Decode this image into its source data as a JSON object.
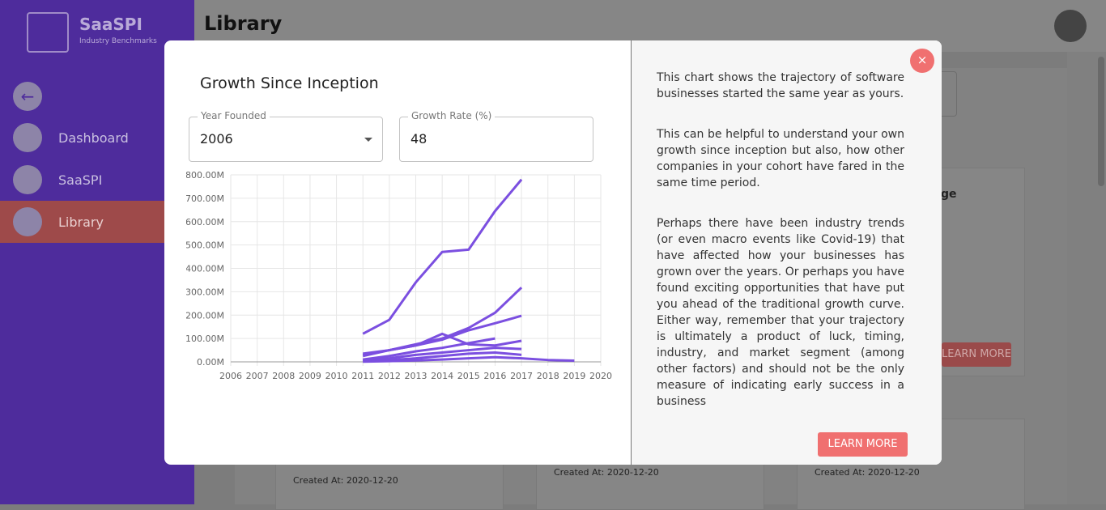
{
  "sidebar": {
    "logo_title": "SaaSPI",
    "logo_subtitle": "Industry Benchmarks",
    "nav": [
      "Dashboard",
      "SaaSPI",
      "Library"
    ]
  },
  "header": {
    "title": "Library"
  },
  "background": {
    "card_title_fragment": "ge",
    "button": "LEARN MORE",
    "created_at": [
      "Created At: 2020-12-20",
      "Created At: 2020-12-20",
      "Created At: 2020-12-20"
    ]
  },
  "modal": {
    "title": "Growth Since Inception",
    "fields": [
      {
        "label": "Year Founded",
        "value": "2006"
      },
      {
        "label": "Growth Rate (%)",
        "value": "48"
      }
    ],
    "description": [
      "This chart shows the trajectory of software businesses started the same year as yours.",
      "This can be helpful to understand your own growth since inception but also, how other companies in your cohort have fared in the same time period.",
      "Perhaps there have been industry trends (or even macro events like Covid-19) that have affected how your businesses has grown over the years. Or perhaps you have found exciting opportunities that have put you ahead of the traditional growth curve. Either way, remember that your trajectory is ultimately a product of luck, timing, industry, and market segment (among other factors) and should not be the only measure of indicating early success in a business"
    ],
    "button": "LEARN MORE",
    "close": "×"
  },
  "chart_data": {
    "type": "line",
    "x": [
      2011,
      2012,
      2013,
      2014,
      2015,
      2016,
      2017,
      2018,
      2019
    ],
    "series": [
      {
        "color": "#7b4fe0",
        "values": [
          120,
          180,
          340,
          470,
          480,
          645,
          780,
          null,
          null
        ]
      },
      {
        "color": "#7b4fe0",
        "values": [
          30,
          50,
          75,
          100,
          145,
          210,
          318,
          null,
          null
        ]
      },
      {
        "color": "#7b4fe0",
        "values": [
          25,
          50,
          70,
          95,
          135,
          165,
          197,
          null,
          null
        ]
      },
      {
        "color": "#7b4fe0",
        "values": [
          35,
          50,
          70,
          120,
          75,
          70,
          90,
          null,
          null
        ]
      },
      {
        "color": "#7b4fe0",
        "values": [
          10,
          25,
          45,
          60,
          80,
          100,
          null,
          null,
          null
        ]
      },
      {
        "color": "#7b4fe0",
        "values": [
          5,
          15,
          30,
          40,
          50,
          60,
          55,
          null,
          null
        ]
      },
      {
        "color": "#7b4fe0",
        "values": [
          2,
          8,
          15,
          25,
          35,
          40,
          30,
          null,
          null
        ]
      },
      {
        "color": "#7b4fe0",
        "values": [
          1,
          3,
          6,
          10,
          15,
          20,
          15,
          8,
          5
        ]
      }
    ],
    "xlim": [
      2006,
      2020
    ],
    "xticks": [
      2006,
      2007,
      2008,
      2009,
      2010,
      2011,
      2012,
      2013,
      2014,
      2015,
      2016,
      2017,
      2018,
      2019,
      2020
    ],
    "ylim": [
      0,
      800
    ],
    "yticks": [
      {
        "value": 0,
        "label": "0.00M"
      },
      {
        "value": 100,
        "label": "100.00M"
      },
      {
        "value": 200,
        "label": "200.00M"
      },
      {
        "value": 300,
        "label": "300.00M"
      },
      {
        "value": 400,
        "label": "400.00M"
      },
      {
        "value": 500,
        "label": "500.00M"
      },
      {
        "value": 600,
        "label": "600.00M"
      },
      {
        "value": 700,
        "label": "700.00M"
      },
      {
        "value": 800,
        "label": "800.00M"
      }
    ],
    "grid": true
  }
}
